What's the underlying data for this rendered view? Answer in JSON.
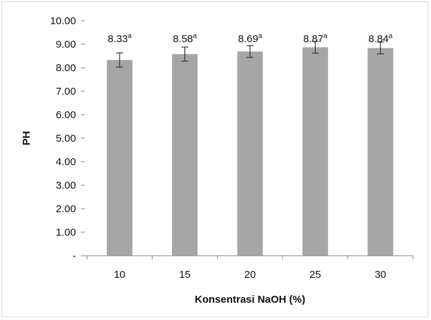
{
  "chart_data": {
    "type": "bar",
    "categories": [
      "10",
      "15",
      "20",
      "25",
      "30"
    ],
    "values": [
      8.33,
      8.58,
      8.69,
      8.87,
      8.84
    ],
    "error": [
      0.3,
      0.3,
      0.25,
      0.25,
      0.25
    ],
    "data_labels": [
      "8.33",
      "8.58",
      "8.69",
      "8.87",
      "8.84"
    ],
    "label_superscripts": [
      "a",
      "a",
      "a",
      "a",
      "a"
    ],
    "y_ticks": [
      "-",
      "1.00",
      "2.00",
      "3.00",
      "4.00",
      "5.00",
      "6.00",
      "7.00",
      "8.00",
      "9.00",
      "10.00"
    ],
    "ylim": [
      0,
      10
    ],
    "xlabel": "Konsentrasi NaOH (%)",
    "ylabel": "PH",
    "title": "",
    "grid": false,
    "legend": "none",
    "colors": {
      "bar": "#a6a6a6",
      "axis": "#868686",
      "error": "#333333",
      "frame": "#d9d9d9"
    }
  }
}
